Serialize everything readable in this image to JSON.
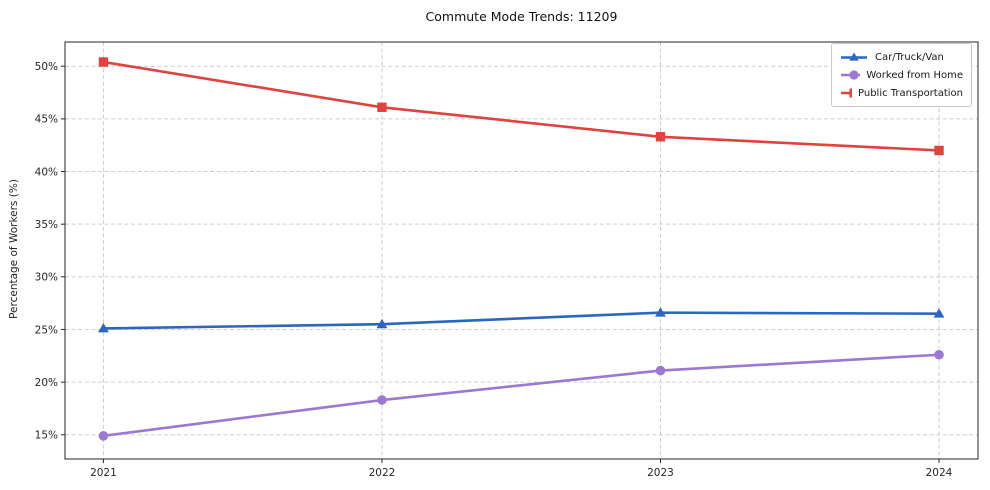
{
  "chart_data": {
    "type": "line",
    "title": "Commute Mode Trends: 11209",
    "xlabel": "",
    "ylabel": "Percentage of Workers (%)",
    "x": [
      2021,
      2022,
      2023,
      2024
    ],
    "xtick_labels": [
      "2021",
      "2022",
      "2023",
      "2024"
    ],
    "yticks": [
      15,
      20,
      25,
      30,
      35,
      40,
      45,
      50
    ],
    "ytick_labels": [
      "15%",
      "20%",
      "25%",
      "30%",
      "35%",
      "40%",
      "45%",
      "50%"
    ],
    "series": [
      {
        "name": "Car/Truck/Van",
        "color": "#2b66c0",
        "marker": "triangle",
        "values": [
          25.1,
          25.5,
          26.6,
          26.5
        ]
      },
      {
        "name": "Worked from Home",
        "color": "#9b78d2",
        "marker": "circle",
        "values": [
          14.9,
          18.3,
          21.1,
          22.6
        ]
      },
      {
        "name": "Public Transportation",
        "color": "#e0423e",
        "marker": "square",
        "values": [
          50.4,
          46.1,
          43.3,
          42.0
        ]
      }
    ],
    "layout": {
      "xlim": [
        2020.862,
        2024.14
      ],
      "ylim": [
        12.7,
        52.3
      ],
      "grid": "dashed-both",
      "legend_position": "upper-right"
    }
  }
}
